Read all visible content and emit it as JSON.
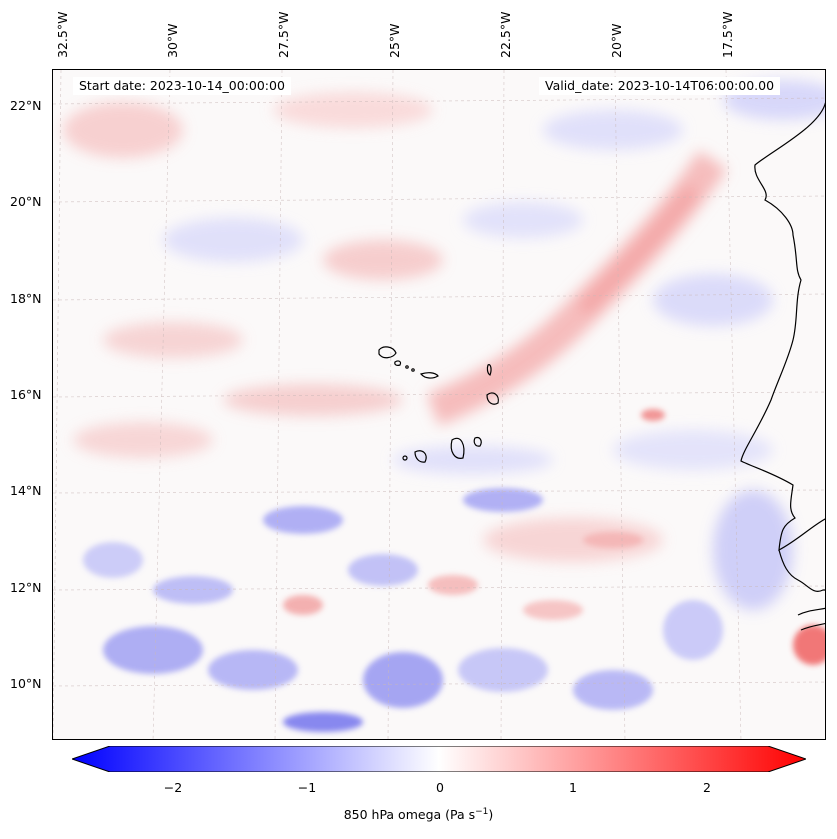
{
  "map": {
    "start_date_text": "Start date: 2023-10-14_00:00:00",
    "valid_date_text": "Valid_date: 2023-10-14T06:00:00.00",
    "longitude_labels": [
      "32.5°W",
      "30°W",
      "27.5°W",
      "25°W",
      "22.5°W",
      "20°W",
      "17.5°W"
    ],
    "latitude_labels": [
      "22°N",
      "20°N",
      "18°N",
      "16°N",
      "14°N",
      "12°N",
      "10°N"
    ]
  },
  "colorbar": {
    "ticks": [
      "−2",
      "−1",
      "0",
      "1",
      "2"
    ],
    "label_main": "850 hPa omega (Pa s",
    "label_sup": "−1",
    "label_end": ")",
    "colors": {
      "min": "#0000ff",
      "mid": "#ffffff",
      "max": "#ff0000"
    }
  }
}
